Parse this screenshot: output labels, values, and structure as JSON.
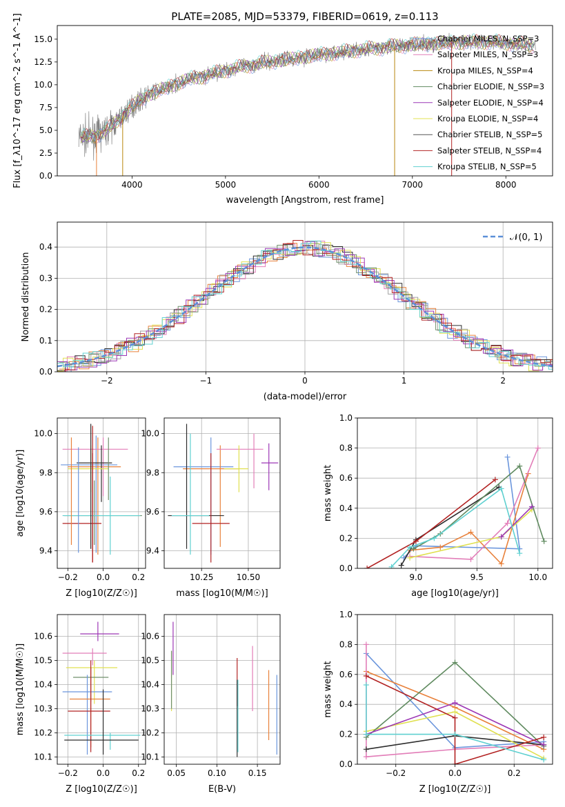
{
  "figure": {
    "title": "PLATE=2085, MJD=53379, FIBERID=0619, z=0.113"
  },
  "colors": {
    "data_spectrum": "#808080",
    "normal_curve": "#5b8fd8",
    "models": [
      "#6a95dc",
      "#e8803a",
      "#e27db8",
      "#2d2d2d",
      "#e0e050",
      "#a0a0a0",
      "#6f8f6a",
      "#9c36b5",
      "#b8860b",
      "#5f8a5f",
      "#a020f0",
      "#f0e060",
      "#555555",
      "#b22222",
      "#5fd0d0"
    ]
  },
  "chart_data": [
    {
      "id": "spectrum",
      "type": "line",
      "title": "PLATE=2085, MJD=53379, FIBERID=0619, z=0.113",
      "xlabel": "wavelength [Angstrom, rest frame]",
      "ylabel": "Flux [f_λ10^-17 erg cm^-2 s^-1 A^-1]",
      "xlim": [
        3200,
        8500
      ],
      "ylim": [
        0,
        16.5
      ],
      "xticks": [
        4000,
        5000,
        6000,
        7000,
        8000
      ],
      "yticks": [
        0.0,
        2.5,
        5.0,
        7.5,
        10.0,
        12.5,
        15.0
      ],
      "legend": "top-right",
      "continuum": {
        "x": [
          3450,
          3600,
          3700,
          3800,
          3900,
          4000,
          4100,
          4200,
          4400,
          4600,
          4800,
          5000,
          5200,
          5400,
          5600,
          5800,
          6000,
          6200,
          6400,
          6600,
          6800,
          7000,
          7200,
          7400,
          7600,
          7800,
          8000,
          8200,
          8300
        ],
        "y": [
          4.2,
          4.4,
          4.8,
          5.6,
          6.6,
          7.6,
          8.4,
          9.0,
          9.8,
          10.6,
          11.0,
          11.6,
          12.0,
          12.4,
          12.7,
          13.0,
          13.3,
          13.5,
          13.8,
          14.0,
          14.2,
          14.4,
          14.5,
          14.6,
          14.7,
          14.7,
          14.6,
          14.4,
          14.3
        ]
      },
      "series": [
        {
          "name": "Chabrier MILES, N_SSP=3",
          "color": "#6a95dc"
        },
        {
          "name": "Salpeter MILES, N_SSP=3",
          "color": "#e27db8"
        },
        {
          "name": "Kroupa MILES, N_SSP=4",
          "color": "#b8860b"
        },
        {
          "name": "Chabrier ELODIE, N_SSP=3",
          "color": "#5f8a5f"
        },
        {
          "name": "Salpeter ELODIE, N_SSP=4",
          "color": "#9c36b5"
        },
        {
          "name": "Kroupa ELODIE, N_SSP=4",
          "color": "#e0e050"
        },
        {
          "name": "Chabrier STELIB, N_SSP=5",
          "color": "#555555"
        },
        {
          "name": "Salpeter STELIB, N_SSP=4",
          "color": "#b22222"
        },
        {
          "name": "Kroupa STELIB, N_SSP=5",
          "color": "#5fd0d0"
        }
      ]
    },
    {
      "id": "residuals",
      "type": "line",
      "xlabel": "(data-model)/error",
      "ylabel": "Normed distribution",
      "xlim": [
        -2.5,
        2.5
      ],
      "ylim": [
        0,
        0.48
      ],
      "xticks": [
        -2,
        -1,
        0,
        1,
        2
      ],
      "yticks": [
        0.0,
        0.1,
        0.2,
        0.3,
        0.4
      ],
      "grid": true,
      "legend": "top-right",
      "normal_label": "𝒩(0, 1)",
      "bin_width": 0.1,
      "series_colors": [
        "#6a95dc",
        "#e8803a",
        "#e27db8",
        "#2d2d2d",
        "#e0e050",
        "#a0a0a0",
        "#6f8f6a",
        "#9c36b5",
        "#b22222",
        "#5fd0d0"
      ]
    },
    {
      "id": "age_vs_Z",
      "type": "scatter",
      "xlabel": "Z [log10(Z/Z☉)]",
      "ylabel": "age  [log10(age/yr)]",
      "xlim": [
        -0.26,
        0.24
      ],
      "ylim": [
        9.31,
        10.08
      ],
      "xticks": [
        -0.2,
        0.0,
        0.2
      ],
      "yticks": [
        9.4,
        9.6,
        9.8,
        10.0
      ],
      "grid": true,
      "points": [
        {
          "x": -0.03,
          "y": 9.83,
          "xerr": [
            0.17,
            0.13
          ],
          "yerr": [
            0.45,
            0.15
          ],
          "color": "#e8803a"
        },
        {
          "x": -0.04,
          "y": 9.84,
          "xerr": [
            0.2,
            0.12
          ],
          "yerr": [
            0.45,
            0.15
          ],
          "color": "#6a95dc"
        },
        {
          "x": 0.0,
          "y": 9.92,
          "xerr": [
            0.23,
            0.14
          ],
          "yerr": [
            0.24,
            0.06
          ],
          "color": "#e27db8"
        },
        {
          "x": -0.01,
          "y": 9.85,
          "xerr": [
            0.14,
            0.06
          ],
          "yerr": [
            0.2,
            0.09
          ],
          "color": "#2d2d2d"
        },
        {
          "x": -0.07,
          "y": 9.82,
          "xerr": [
            0.13,
            0.1
          ],
          "yerr": [
            0.12,
            0.12
          ],
          "color": "#e0e050"
        },
        {
          "x": -0.05,
          "y": 9.58,
          "xerr": [
            0.17,
            0.27
          ],
          "yerr": [
            0.15,
            0.18
          ],
          "color": "#6f8f6a"
        },
        {
          "x": -0.06,
          "y": 9.54,
          "xerr": [
            0.17,
            0.05
          ],
          "yerr": [
            0.2,
            0.36
          ],
          "color": "#b22222"
        },
        {
          "x": 0.04,
          "y": 9.58,
          "xerr": [
            0.27,
            0.17
          ],
          "yerr": [
            0.2,
            0.2
          ],
          "color": "#5fd0d0"
        }
      ],
      "vlines": [
        {
          "x": -0.14,
          "y0": 9.39,
          "y1": 9.93,
          "color": "#6a95dc"
        },
        {
          "x": -0.07,
          "y0": 9.41,
          "y1": 10.05,
          "color": "#2d2d2d"
        },
        {
          "x": -0.06,
          "y0": 9.34,
          "y1": 10.04,
          "color": "#b22222"
        },
        {
          "x": 0.03,
          "y0": 9.66,
          "y1": 9.98,
          "color": "#6f8f6a"
        },
        {
          "x": -0.18,
          "y0": 9.43,
          "y1": 9.98,
          "color": "#e8803a"
        }
      ]
    },
    {
      "id": "age_vs_mass",
      "type": "scatter",
      "xlabel": "mass [log10(M/M☉)]",
      "ylabel": "",
      "xlim": [
        10.05,
        10.67
      ],
      "ylim": [
        9.31,
        10.08
      ],
      "xticks": [
        10.25,
        10.5
      ],
      "yticks": [
        9.4,
        9.6,
        9.8,
        10.0
      ],
      "grid": true,
      "points": [
        {
          "x": 10.3,
          "y": 9.83,
          "xerr": [
            0.2,
            0.12
          ],
          "yerr": [
            0.45,
            0.15
          ],
          "color": "#6a95dc"
        },
        {
          "x": 10.35,
          "y": 9.82,
          "xerr": [
            0.2,
            0.1
          ],
          "yerr": [
            0.4,
            0.12
          ],
          "color": "#e8803a"
        },
        {
          "x": 10.53,
          "y": 9.92,
          "xerr": [
            0.2,
            0.05
          ],
          "yerr": [
            0.2,
            0.08
          ],
          "color": "#e27db8"
        },
        {
          "x": 10.61,
          "y": 9.85,
          "xerr": [
            0.04,
            0.05
          ],
          "yerr": [
            0.14,
            0.1
          ],
          "color": "#9c36b5"
        },
        {
          "x": 10.45,
          "y": 9.82,
          "xerr": [
            0.08,
            0.05
          ],
          "yerr": [
            0.12,
            0.12
          ],
          "color": "#e0e050"
        },
        {
          "x": 10.17,
          "y": 9.58,
          "xerr": [
            0.1,
            0.2
          ],
          "yerr": [
            0.17,
            0.47
          ],
          "color": "#2d2d2d"
        },
        {
          "x": 10.3,
          "y": 9.54,
          "xerr": [
            0.1,
            0.1
          ],
          "yerr": [
            0.2,
            0.36
          ],
          "color": "#b22222"
        },
        {
          "x": 10.19,
          "y": 9.58,
          "xerr": [
            0.1,
            0.1
          ],
          "yerr": [
            0.2,
            0.42
          ],
          "color": "#5fd0d0"
        }
      ]
    },
    {
      "id": "weight_vs_age",
      "type": "line",
      "xlabel": "age  [log10(age/yr)]",
      "ylabel": "mass weight",
      "xlim": [
        8.52,
        10.12
      ],
      "ylim": [
        0,
        1.0
      ],
      "xticks": [
        9.0,
        9.5,
        10.0
      ],
      "yticks": [
        0.0,
        0.2,
        0.4,
        0.6,
        0.8,
        1.0
      ],
      "grid": true,
      "series": [
        {
          "color": "#6a95dc",
          "x": [
            8.9,
            9.0,
            9.85,
            9.75
          ],
          "y": [
            0.07,
            0.15,
            0.13,
            0.74
          ]
        },
        {
          "color": "#e8803a",
          "x": [
            8.95,
            9.2,
            9.45,
            9.7,
            9.92
          ],
          "y": [
            0.12,
            0.14,
            0.24,
            0.03,
            0.63
          ]
        },
        {
          "color": "#e27db8",
          "x": [
            8.95,
            9.45,
            9.75,
            10.0
          ],
          "y": [
            0.08,
            0.06,
            0.3,
            0.8
          ]
        },
        {
          "color": "#2d2d2d",
          "x": [
            8.88,
            9.0,
            9.68
          ],
          "y": [
            0.02,
            0.19,
            0.54
          ]
        },
        {
          "color": "#e0e050",
          "x": [
            8.95,
            9.7,
            9.95
          ],
          "y": [
            0.07,
            0.21,
            0.39
          ]
        },
        {
          "color": "#5f8a5f",
          "x": [
            8.98,
            9.2,
            9.85,
            10.05
          ],
          "y": [
            0.13,
            0.23,
            0.68,
            0.18
          ]
        },
        {
          "color": "#9c36b5",
          "x": [
            9.7,
            9.95
          ],
          "y": [
            0.21,
            0.41
          ]
        },
        {
          "color": "#b22222",
          "x": [
            8.6,
            9.0,
            9.65
          ],
          "y": [
            0.0,
            0.18,
            0.59
          ]
        },
        {
          "color": "#5fd0d0",
          "x": [
            8.8,
            8.95,
            9.15,
            9.7,
            9.85
          ],
          "y": [
            0.01,
            0.14,
            0.2,
            0.53,
            0.1
          ]
        }
      ]
    },
    {
      "id": "mass_vs_Z",
      "type": "scatter",
      "xlabel": "Z [log10(Z/Z☉)]",
      "ylabel": "mass [log10(M/M☉)]",
      "xlim": [
        -0.26,
        0.24
      ],
      "ylim": [
        10.07,
        10.69
      ],
      "xticks": [
        -0.2,
        0.0,
        0.2
      ],
      "yticks": [
        10.1,
        10.2,
        10.3,
        10.4,
        10.5,
        10.6
      ],
      "grid": true,
      "points": [
        {
          "x": -0.03,
          "y": 10.61,
          "xerr": [
            0.1,
            0.12
          ],
          "yerr": [
            0.03,
            0.05
          ],
          "color": "#9c36b5"
        },
        {
          "x": -0.06,
          "y": 10.53,
          "xerr": [
            0.17,
            0.08
          ],
          "yerr": [
            0.05,
            0.02
          ],
          "color": "#e27db8"
        },
        {
          "x": -0.05,
          "y": 10.47,
          "xerr": [
            0.16,
            0.13
          ],
          "yerr": [
            0.15,
            0.03
          ],
          "color": "#e0e050"
        },
        {
          "x": -0.07,
          "y": 10.43,
          "xerr": [
            0.1,
            0.1
          ],
          "yerr": [
            0.1,
            0.04
          ],
          "color": "#6f8f6a"
        },
        {
          "x": -0.09,
          "y": 10.37,
          "xerr": [
            0.14,
            0.14
          ],
          "yerr": [
            0.26,
            0.07
          ],
          "color": "#6a95dc"
        },
        {
          "x": -0.07,
          "y": 10.34,
          "xerr": [
            0.12,
            0.11
          ],
          "yerr": [
            0.2,
            0.13
          ],
          "color": "#e8803a"
        },
        {
          "x": -0.07,
          "y": 10.29,
          "xerr": [
            0.13,
            0.11
          ],
          "yerr": [
            0.17,
            0.21
          ],
          "color": "#b22222"
        },
        {
          "x": 0.04,
          "y": 10.19,
          "xerr": [
            0.26,
            0.17
          ],
          "yerr": [
            0.06,
            0.01
          ],
          "color": "#5fd0d0"
        },
        {
          "x": 0.0,
          "y": 10.17,
          "xerr": [
            0.22,
            0.2
          ],
          "yerr": [
            0.06,
            0.21
          ],
          "color": "#2d2d2d"
        }
      ]
    },
    {
      "id": "mass_vs_ebv",
      "type": "scatter",
      "xlabel": "E(B-V)",
      "ylabel": "",
      "xlim": [
        0.035,
        0.178
      ],
      "ylim": [
        10.07,
        10.69
      ],
      "xticks": [
        0.05,
        0.1,
        0.15
      ],
      "yticks": [
        10.1,
        10.2,
        10.3,
        10.4,
        10.5,
        10.6
      ],
      "grid": true,
      "vlines": [
        {
          "x": 0.046,
          "y0": 10.44,
          "y1": 10.66,
          "color": "#9c36b5"
        },
        {
          "x": 0.044,
          "y0": 10.29,
          "y1": 10.54,
          "color": "#e0e050"
        },
        {
          "x": 0.044,
          "y0": 10.3,
          "y1": 10.54,
          "color": "#6f8f6a"
        },
        {
          "x": 0.125,
          "y0": 10.31,
          "y1": 10.51,
          "color": "#b22222"
        },
        {
          "x": 0.125,
          "y0": 10.1,
          "y1": 10.42,
          "color": "#2d2d2d"
        },
        {
          "x": 0.126,
          "y0": 10.12,
          "y1": 10.42,
          "color": "#5fd0d0"
        },
        {
          "x": 0.144,
          "y0": 10.29,
          "y1": 10.56,
          "color": "#e27db8"
        },
        {
          "x": 0.164,
          "y0": 10.17,
          "y1": 10.46,
          "color": "#e8803a"
        },
        {
          "x": 0.174,
          "y0": 10.11,
          "y1": 10.44,
          "color": "#6a95dc"
        }
      ]
    },
    {
      "id": "weight_vs_Z",
      "type": "line",
      "xlabel": "Z [log10(Z/Z☉)]",
      "ylabel": "mass weight",
      "xlim": [
        -0.33,
        0.33
      ],
      "ylim": [
        0,
        1.0
      ],
      "xticks": [
        -0.2,
        0.0,
        0.2
      ],
      "yticks": [
        0.0,
        0.2,
        0.4,
        0.6,
        0.8,
        1.0
      ],
      "grid": true,
      "series": [
        {
          "color": "#6a95dc",
          "x": [
            -0.3,
            0.0,
            0.3
          ],
          "y": [
            0.74,
            0.11,
            0.15
          ]
        },
        {
          "color": "#e8803a",
          "x": [
            -0.3,
            0.0,
            0.3
          ],
          "y": [
            0.62,
            0.38,
            0.1
          ]
        },
        {
          "color": "#e27db8",
          "x": [
            -0.3,
            -0.3,
            0.0,
            0.3
          ],
          "y": [
            0.8,
            0.05,
            0.1,
            0.13
          ]
        },
        {
          "color": "#2d2d2d",
          "x": [
            -0.3,
            0.0,
            0.3
          ],
          "y": [
            0.1,
            0.19,
            0.13
          ]
        },
        {
          "color": "#e0e050",
          "x": [
            -0.3,
            0.0,
            0.3
          ],
          "y": [
            0.22,
            0.35,
            0.04
          ]
        },
        {
          "color": "#5f8a5f",
          "x": [
            -0.3,
            0.0,
            0.3
          ],
          "y": [
            0.18,
            0.68,
            0.12
          ]
        },
        {
          "color": "#9c36b5",
          "x": [
            -0.3,
            0.0,
            0.3
          ],
          "y": [
            0.2,
            0.41,
            0.13
          ]
        },
        {
          "color": "#b22222",
          "x": [
            -0.3,
            0.0,
            0.0,
            0.3
          ],
          "y": [
            0.59,
            0.31,
            0.0,
            0.18
          ]
        },
        {
          "color": "#5fd0d0",
          "x": [
            -0.3,
            -0.3,
            0.0,
            0.3
          ],
          "y": [
            0.53,
            0.2,
            0.2,
            0.03
          ]
        }
      ]
    }
  ]
}
